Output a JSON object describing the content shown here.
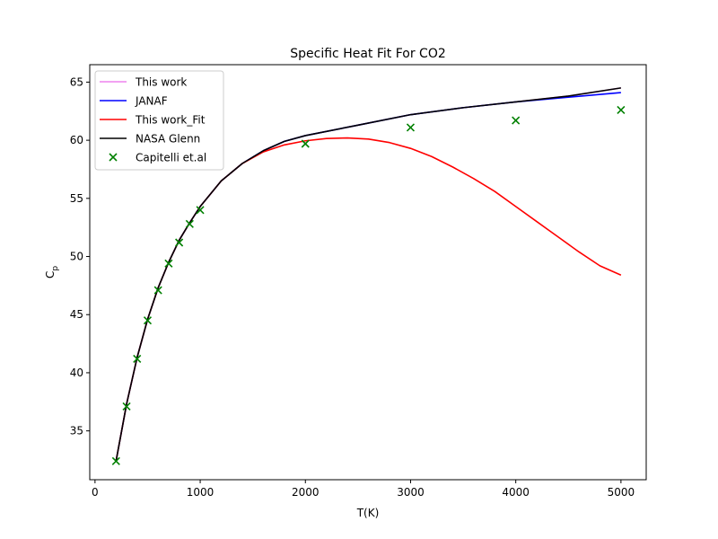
{
  "chart_data": {
    "type": "line",
    "title": "Specific Heat Fit For CO2",
    "xlabel": "T(K)",
    "ylabel_main": "C",
    "ylabel_sub": "p",
    "xlim": [
      -50,
      5240
    ],
    "ylim": [
      30.8,
      66.5
    ],
    "x_ticks": [
      0,
      1000,
      2000,
      3000,
      4000,
      5000
    ],
    "y_ticks": [
      35,
      40,
      45,
      50,
      55,
      60,
      65
    ],
    "grid": false,
    "legend_position": "upper-left",
    "series": [
      {
        "name": "This work",
        "kind": "line",
        "color": "#ee82ee",
        "x": [
          200,
          300,
          400,
          500,
          600,
          700,
          800,
          900,
          1000,
          1200,
          1400,
          1600,
          1800,
          2000,
          2500,
          3000,
          3500,
          4000,
          4500,
          5000
        ],
        "y": [
          32.4,
          37.3,
          41.3,
          44.6,
          47.3,
          49.5,
          51.4,
          52.9,
          54.3,
          56.5,
          58.0,
          59.1,
          59.9,
          60.4,
          61.3,
          62.2,
          62.8,
          63.3,
          63.8,
          64.5
        ]
      },
      {
        "name": "JANAF",
        "kind": "line",
        "color": "#0000ff",
        "x": [
          200,
          300,
          400,
          500,
          600,
          700,
          800,
          900,
          1000,
          1200,
          1400,
          1600,
          1800,
          2000,
          2500,
          3000,
          3500,
          4000,
          4500,
          5000
        ],
        "y": [
          32.4,
          37.3,
          41.3,
          44.6,
          47.3,
          49.5,
          51.4,
          52.9,
          54.3,
          56.5,
          58.0,
          59.1,
          59.9,
          60.4,
          61.3,
          62.2,
          62.8,
          63.3,
          63.7,
          64.1
        ]
      },
      {
        "name": "This work_Fit",
        "kind": "line",
        "color": "#ff0000",
        "x": [
          200,
          300,
          400,
          500,
          600,
          700,
          800,
          900,
          1000,
          1200,
          1400,
          1600,
          1800,
          2000,
          2200,
          2400,
          2600,
          2800,
          3000,
          3200,
          3400,
          3600,
          3800,
          4000,
          4200,
          4400,
          4600,
          4800,
          5000
        ],
        "y": [
          32.4,
          37.3,
          41.3,
          44.6,
          47.3,
          49.5,
          51.4,
          52.9,
          54.3,
          56.5,
          58.0,
          59.0,
          59.6,
          59.95,
          60.15,
          60.2,
          60.1,
          59.8,
          59.3,
          58.6,
          57.7,
          56.7,
          55.6,
          54.3,
          53.0,
          51.7,
          50.4,
          49.2,
          48.4
        ]
      },
      {
        "name": "NASA Glenn",
        "kind": "line",
        "color": "#000000",
        "x": [
          200,
          300,
          400,
          500,
          600,
          700,
          800,
          900,
          1000,
          1200,
          1400,
          1600,
          1800,
          2000,
          2500,
          3000,
          3500,
          4000,
          4500,
          5000
        ],
        "y": [
          32.4,
          37.3,
          41.3,
          44.6,
          47.3,
          49.5,
          51.4,
          52.9,
          54.3,
          56.5,
          58.0,
          59.1,
          59.9,
          60.4,
          61.3,
          62.2,
          62.8,
          63.3,
          63.8,
          64.5
        ]
      },
      {
        "name": "Capitelli et.al",
        "kind": "scatter",
        "marker": "x",
        "color": "#008000",
        "x": [
          200,
          300,
          400,
          500,
          600,
          700,
          800,
          900,
          1000,
          2000,
          3000,
          4000,
          5000
        ],
        "y": [
          32.4,
          37.1,
          41.2,
          44.5,
          47.1,
          49.4,
          51.2,
          52.8,
          54.0,
          59.7,
          61.1,
          61.7,
          62.6
        ]
      }
    ]
  }
}
